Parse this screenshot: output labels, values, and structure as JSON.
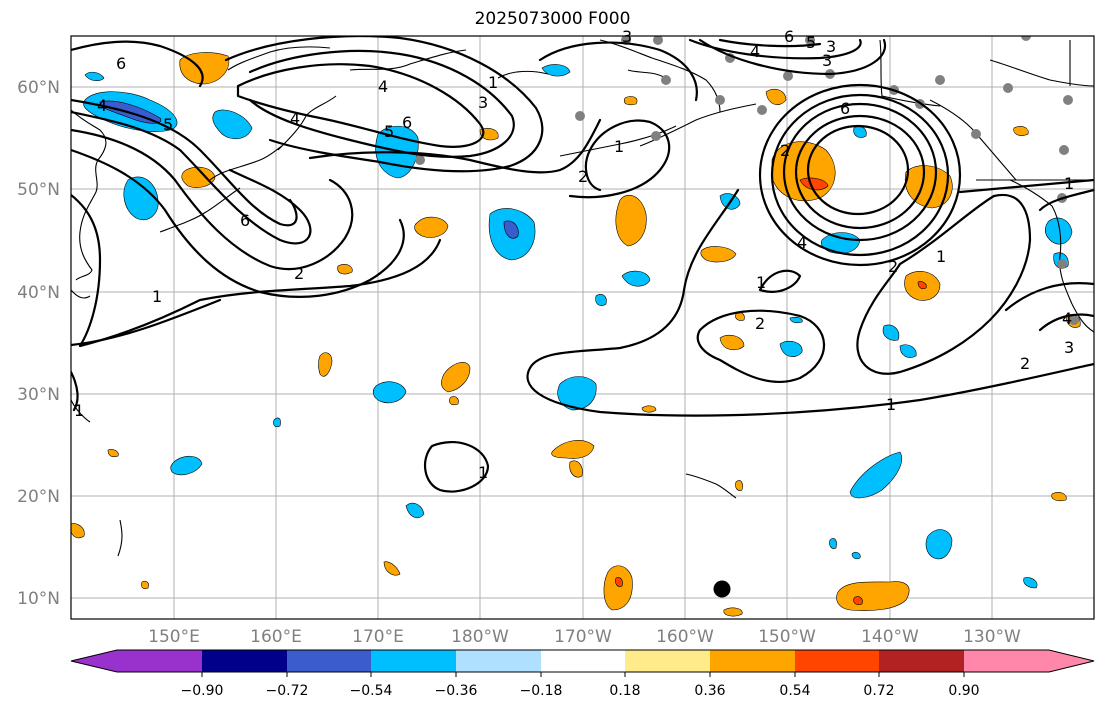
{
  "title": "2025073000 F000",
  "map": {
    "lat_ticks": [
      "60°N",
      "50°N",
      "40°N",
      "30°N",
      "20°N",
      "10°N"
    ],
    "lon_ticks": [
      "150°E",
      "160°E",
      "170°E",
      "180°W",
      "170°W",
      "160°W",
      "150°W",
      "140°W",
      "130°W"
    ],
    "contour_labels": [
      "6",
      "4",
      "5",
      "4",
      "3",
      "1",
      "6",
      "5",
      "6",
      "2",
      "1",
      "2",
      "4",
      "3",
      "6",
      "5",
      "3",
      "6",
      "2",
      "4",
      "1",
      "2",
      "1",
      "1",
      "2",
      "1",
      "3",
      "4",
      "2",
      "1",
      "1",
      "1",
      "3",
      "4"
    ],
    "grid": true
  },
  "colorbar": {
    "tick_labels": [
      "−0.90",
      "−0.72",
      "−0.54",
      "−0.36",
      "−0.18",
      "0.18",
      "0.36",
      "0.54",
      "0.72",
      "0.90"
    ],
    "colors": [
      "#9932cc",
      "#00008b",
      "#3a5ccc",
      "#00bfff",
      "#b0e0ff",
      "#ffffff",
      "#ffeb8a",
      "#ffa500",
      "#ff4500",
      "#b22222",
      "#ff88aa"
    ]
  }
}
